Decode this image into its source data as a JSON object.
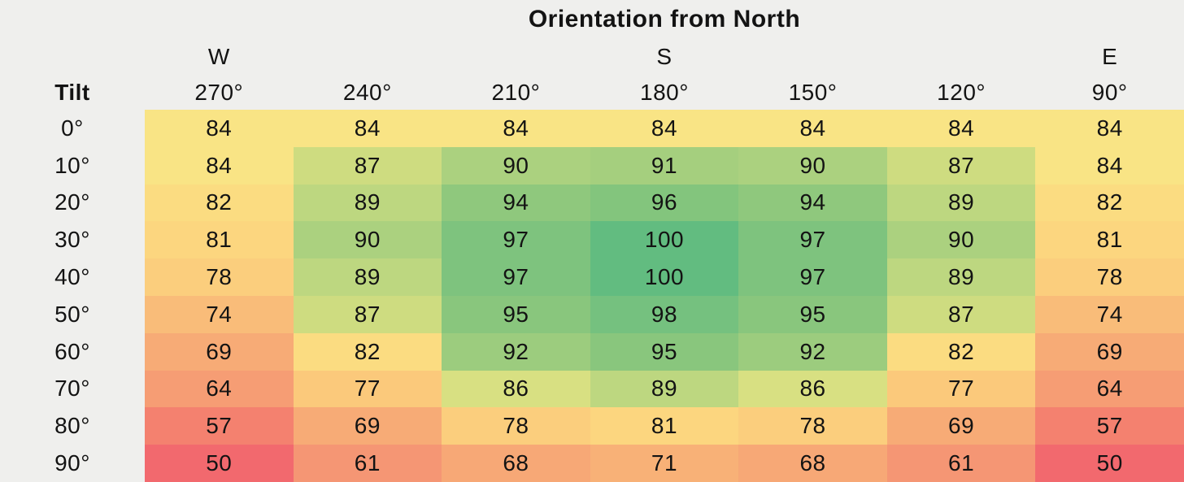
{
  "title": "Orientation from North",
  "tilt_header": "Tilt",
  "colors": {
    "background": "#EFEFED",
    "text": "#131313"
  },
  "chart_data": {
    "type": "heatmap",
    "title": "Orientation from North",
    "x_axis_label": "Orientation from North",
    "y_axis_label": "Tilt",
    "column_direction_labels": [
      "W",
      "",
      "",
      "S",
      "",
      "",
      "E"
    ],
    "column_labels": [
      "270°",
      "240°",
      "210°",
      "180°",
      "150°",
      "120°",
      "90°"
    ],
    "row_labels": [
      "0°",
      "10°",
      "20°",
      "30°",
      "40°",
      "50°",
      "60°",
      "70°",
      "80°",
      "90°"
    ],
    "values": [
      [
        84,
        84,
        84,
        84,
        84,
        84,
        84
      ],
      [
        84,
        87,
        90,
        91,
        90,
        87,
        84
      ],
      [
        82,
        89,
        94,
        96,
        94,
        89,
        82
      ],
      [
        81,
        90,
        97,
        100,
        97,
        90,
        81
      ],
      [
        78,
        89,
        97,
        100,
        97,
        89,
        78
      ],
      [
        74,
        87,
        95,
        98,
        95,
        87,
        74
      ],
      [
        69,
        82,
        92,
        95,
        92,
        82,
        69
      ],
      [
        64,
        77,
        86,
        89,
        86,
        77,
        64
      ],
      [
        57,
        69,
        78,
        81,
        78,
        69,
        57
      ],
      [
        50,
        61,
        68,
        71,
        68,
        61,
        50
      ]
    ],
    "value_range": [
      50,
      100
    ],
    "color_scale": {
      "style": "red-yellow-green",
      "min_color": "#F2696E",
      "mid_color": "#F9E485",
      "max_color": "#62BC80"
    },
    "value_colors": {
      "50": "#F2696E",
      "57": "#F4816F",
      "61": "#F59674",
      "64": "#F69D74",
      "68": "#F7A876",
      "69": "#F7AB76",
      "71": "#F8B177",
      "74": "#F9BC79",
      "77": "#FBC97B",
      "78": "#FBCE7D",
      "81": "#FCD67F",
      "82": "#FBDC81",
      "84": "#F9E485",
      "86": "#D8E082",
      "87": "#CEDC80",
      "89": "#BDD780",
      "90": "#ABD17F",
      "91": "#A5CF7E",
      "92": "#9CCC7E",
      "94": "#8FC87D",
      "95": "#89C67D",
      "96": "#83C57D",
      "97": "#7EC37E",
      "98": "#75C17F",
      "100": "#62BC80"
    }
  }
}
